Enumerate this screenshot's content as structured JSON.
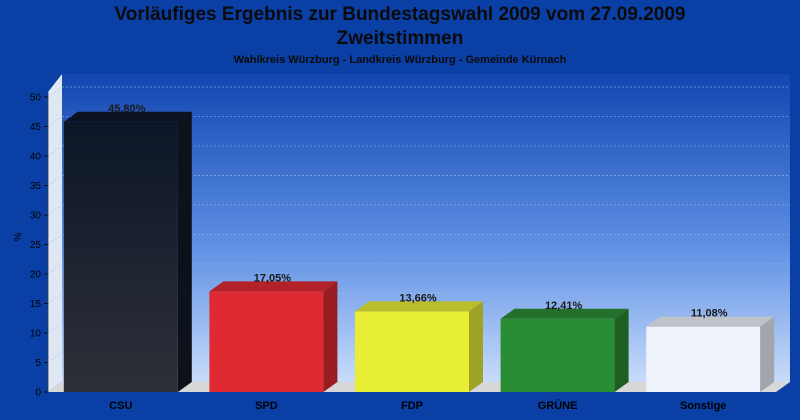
{
  "header": {
    "title_line1": "Vorläufiges Ergebnis zur Bundestagswahl 2009 vom 27.09.2009",
    "title_line2": "Zweitstimmen",
    "subtitle": "Wahlkreis Würzburg - Landkreis Würzburg - Gemeinde Kürnach"
  },
  "chart_data": {
    "type": "bar",
    "title": "Vorläufiges Ergebnis zur Bundestagswahl 2009 vom 27.09.2009 Zweitstimmen",
    "subtitle": "Wahlkreis Würzburg - Landkreis Würzburg - Gemeinde Kürnach",
    "categories": [
      "CSU",
      "SPD",
      "FDP",
      "GRÜNE",
      "Sonstige"
    ],
    "values": [
      45.8,
      17.05,
      13.66,
      12.41,
      11.08
    ],
    "value_labels": [
      "45,80%",
      "17,05%",
      "13,66%",
      "12,41%",
      "11,08%"
    ],
    "colors": [
      "#1c2130",
      "#e02a33",
      "#e8ee36",
      "#2a8c34",
      "#eef2fb"
    ],
    "ylabel": "%",
    "ylim": [
      0,
      50
    ],
    "yticks": [
      0,
      5,
      10,
      15,
      20,
      25,
      30,
      35,
      40,
      45,
      50
    ],
    "grid": true,
    "legend": "none"
  }
}
